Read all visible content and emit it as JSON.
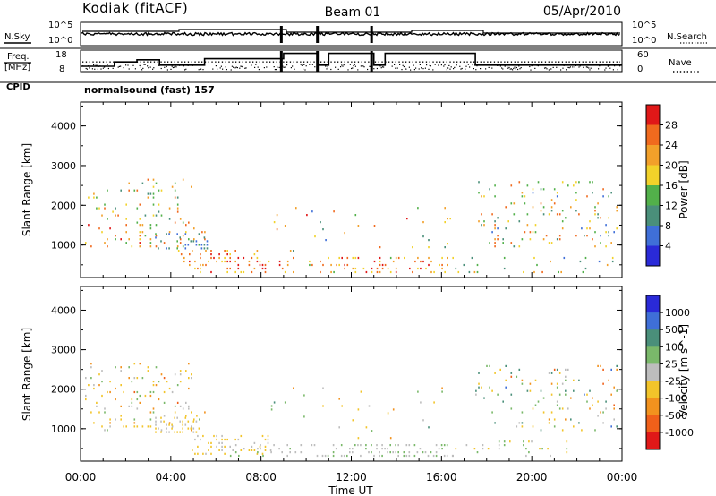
{
  "header": {
    "station": "Kodiak (fitACF)",
    "beam": "Beam 01",
    "date": "05/Apr/2010"
  },
  "noise_panel": {
    "left_label": "N.Sky",
    "right_label": "N.Search",
    "left_ticks": [
      "10^5",
      "10^0"
    ],
    "right_ticks": [
      "10^5",
      "10^0"
    ]
  },
  "freq_panel": {
    "left_label_line1": "Freq.",
    "left_label_line2": "[MHz]",
    "right_label": "Nave",
    "left_ticks": [
      "18",
      "8"
    ],
    "right_ticks": [
      "60",
      "0"
    ]
  },
  "cpid": {
    "label": "CPID",
    "program": "normalsound (fast) 157"
  },
  "x_axis": {
    "label": "Time UT",
    "ticks": [
      "00:00",
      "04:00",
      "08:00",
      "12:00",
      "16:00",
      "20:00",
      "00:00"
    ]
  },
  "y_axis": {
    "label": "Slant Range [km]",
    "ticks": [
      "1000",
      "2000",
      "3000",
      "4000"
    ]
  },
  "power_bar": {
    "label": "Power [dB]",
    "ticks": [
      "4",
      "8",
      "12",
      "16",
      "20",
      "24",
      "28"
    ],
    "colors": [
      "#2a2ad8",
      "#3f6fd8",
      "#4a8f7a",
      "#52b04a",
      "#f2d22a",
      "#f2a02a",
      "#f06a1e",
      "#e01818"
    ]
  },
  "velocity_bar": {
    "label": "Velocity [m s^-1]",
    "ticks": [
      "1000",
      "500",
      "100",
      "25",
      "-25",
      "-100",
      "-500",
      "-1000"
    ],
    "colors": [
      "#2a2ad8",
      "#3f6fd8",
      "#4a8f7a",
      "#7ab86a",
      "#bdbdbd",
      "#f2c42a",
      "#f2921e",
      "#f0601a",
      "#e01818"
    ]
  },
  "chart_data": {
    "type": "heatmap",
    "title": "Kodiak (fitACF)",
    "xlabel": "Time UT",
    "ylabel": "Slant Range [km]",
    "xlim": [
      0,
      24
    ],
    "ylim": [
      180,
      4600
    ],
    "panels": [
      {
        "name": "Power [dB]",
        "clim": [
          0,
          30
        ],
        "scatter_regions": [
          {
            "t": [
              0.2,
              5.0
            ],
            "r": [
              1500,
              2600
            ],
            "density": 0.12,
            "v": [
              8,
              26
            ]
          },
          {
            "t": [
              0.2,
              5.5
            ],
            "r": [
              900,
              1500
            ],
            "density": 0.14,
            "v": [
              12,
              28
            ]
          },
          {
            "t": [
              3.3,
              5.6
            ],
            "r": [
              850,
              1250
            ],
            "density": 0.35,
            "v": [
              4,
              12
            ]
          },
          {
            "t": [
              4.2,
              8.2
            ],
            "r": [
              250,
              800
            ],
            "density": 0.25,
            "v": [
              16,
              30
            ]
          },
          {
            "t": [
              8.2,
              16.5
            ],
            "r": [
              250,
              700
            ],
            "density": 0.22,
            "v": [
              14,
              30
            ]
          },
          {
            "t": [
              8.2,
              16.5
            ],
            "r": [
              700,
              2000
            ],
            "density": 0.03,
            "v": [
              6,
              28
            ]
          },
          {
            "t": [
              17.5,
              23.8
            ],
            "r": [
              900,
              2600
            ],
            "density": 0.13,
            "v": [
              6,
              26
            ]
          },
          {
            "t": [
              16.0,
              23.8
            ],
            "r": [
              250,
              700
            ],
            "density": 0.07,
            "v": [
              6,
              24
            ]
          }
        ]
      },
      {
        "name": "Velocity [m s^-1]",
        "clim": [
          -1000,
          1000
        ],
        "scatter_regions": [
          {
            "t": [
              0.2,
              5.0
            ],
            "r": [
              1500,
              2600
            ],
            "density": 0.12,
            "v": [
              -600,
              300
            ]
          },
          {
            "t": [
              0.2,
              5.5
            ],
            "r": [
              900,
              1500
            ],
            "density": 0.12,
            "v": [
              -500,
              200
            ]
          },
          {
            "t": [
              3.3,
              5.3
            ],
            "r": [
              850,
              1250
            ],
            "density": 0.4,
            "v": [
              -200,
              -60
            ]
          },
          {
            "t": [
              4.8,
              8.5
            ],
            "r": [
              300,
              800
            ],
            "density": 0.25,
            "v": [
              -300,
              50
            ]
          },
          {
            "t": [
              6.5,
              16.5
            ],
            "r": [
              250,
              600
            ],
            "density": 0.25,
            "v": [
              -40,
              150
            ]
          },
          {
            "t": [
              8.2,
              16.5
            ],
            "r": [
              700,
              2000
            ],
            "density": 0.03,
            "v": [
              -400,
              400
            ]
          },
          {
            "t": [
              17.5,
              23.8
            ],
            "r": [
              900,
              2600
            ],
            "density": 0.13,
            "v": [
              -600,
              600
            ]
          },
          {
            "t": [
              16.0,
              23.8
            ],
            "r": [
              250,
              700
            ],
            "density": 0.07,
            "v": [
              -300,
              300
            ]
          }
        ]
      }
    ],
    "frequency_mhz_segments": [
      {
        "t": [
          0.0,
          1.5
        ],
        "f": 10.5
      },
      {
        "t": [
          1.5,
          2.5
        ],
        "f": 12.5
      },
      {
        "t": [
          2.5,
          3.5
        ],
        "f": 13.5
      },
      {
        "t": [
          3.5,
          5.5
        ],
        "f": 11.0
      },
      {
        "t": [
          5.5,
          9.0
        ],
        "f": 14.0
      },
      {
        "t": [
          9.0,
          10.5
        ],
        "f": 16.5
      },
      {
        "t": [
          10.5,
          11.0
        ],
        "f": 11.0
      },
      {
        "t": [
          11.0,
          13.0
        ],
        "f": 16.5
      },
      {
        "t": [
          13.0,
          13.5
        ],
        "f": 11.0
      },
      {
        "t": [
          13.5,
          17.5
        ],
        "f": 16.5
      },
      {
        "t": [
          17.5,
          24.0
        ],
        "f": 11.0
      }
    ],
    "nave_level": 27,
    "noise_spikes_ut": [
      8.9,
      10.5,
      12.9
    ]
  }
}
